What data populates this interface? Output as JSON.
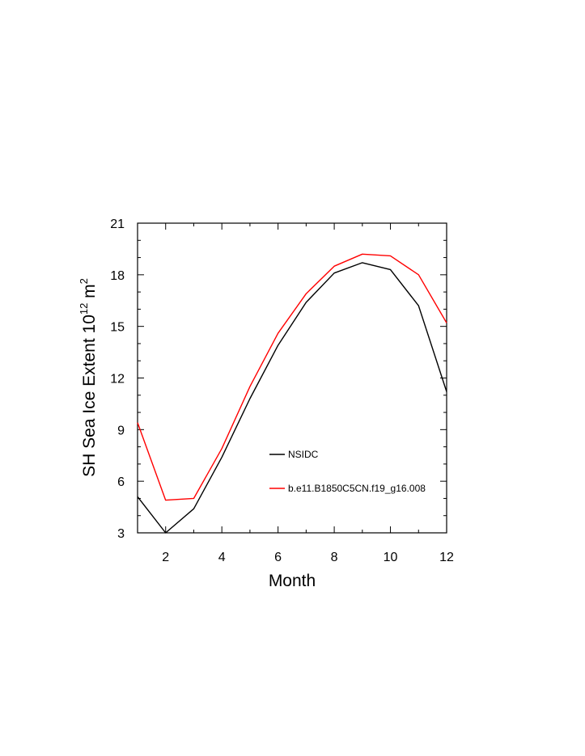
{
  "chart_data": {
    "type": "line",
    "xlabel": "Month",
    "ylabel": {
      "prefix": "SH Sea Ice Extent 10",
      "sup1": "12",
      "unit": " m",
      "sup2": "2"
    },
    "xlim": [
      1,
      12
    ],
    "ylim": [
      3,
      21
    ],
    "xticks": [
      2,
      4,
      6,
      8,
      10,
      12
    ],
    "yticks": [
      3,
      6,
      9,
      12,
      15,
      18,
      21
    ],
    "grid": false,
    "legend_position": "center-right",
    "x": [
      1,
      2,
      3,
      4,
      5,
      6,
      7,
      8,
      9,
      10,
      11,
      12
    ],
    "series": [
      {
        "name": "NSIDC",
        "color": "#000000",
        "values": [
          5.1,
          3.0,
          4.4,
          7.4,
          10.8,
          13.9,
          16.4,
          18.1,
          18.7,
          18.3,
          16.2,
          11.2
        ]
      },
      {
        "name": "b.e11.B1850C5CN.f19_g16.008",
        "color": "#ff0000",
        "values": [
          9.4,
          4.9,
          5.0,
          7.9,
          11.5,
          14.6,
          16.9,
          18.5,
          19.2,
          19.1,
          18.0,
          15.2
        ]
      }
    ]
  }
}
